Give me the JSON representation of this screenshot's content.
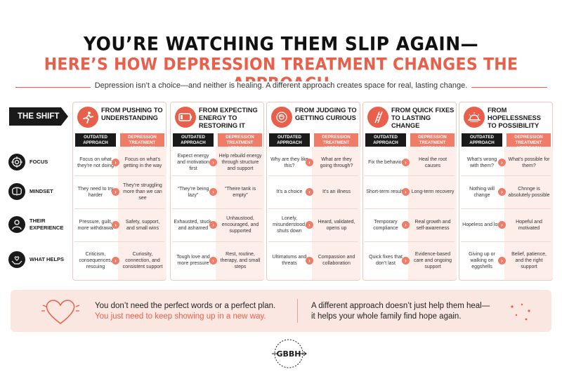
{
  "header": {
    "title_line1": "YOU’RE WATCHING THEM SLIP AGAIN—",
    "title_line2": "HERE’S HOW DEPRESSION TREATMENT CHANGES THE APPROACH",
    "subtitle": "Depression isn’t a choice—and neither is healing. A different approach creates space for real, lasting change."
  },
  "shift_label": "THE SHIFT",
  "tags": {
    "outdated": "OUTDATED APPROACH",
    "depression": "DEPRESSION TREATMENT APPROACH"
  },
  "rows": [
    {
      "label": "FOCUS",
      "icon": "target-icon"
    },
    {
      "label": "MINDSET",
      "icon": "brain-icon"
    },
    {
      "label": "THEIR EXPERIENCE",
      "icon": "person-icon"
    },
    {
      "label": "WHAT HELPS",
      "icon": "helping-hands-icon"
    }
  ],
  "columns": [
    {
      "title": "FROM PUSHING TO UNDERSTANDING",
      "icon": "running-person-icon",
      "cells": [
        [
          "Focus on what they’re not doing",
          "Focus on what’s getting in the way"
        ],
        [
          "They need to try harder",
          "They’re struggling more than we can see"
        ],
        [
          "Pressure, guilt, more withdrawal",
          "Safety, support, and small wins"
        ],
        [
          "Criticism, consequences, rescuing",
          "Curiosity, connection, and consistent support"
        ]
      ]
    },
    {
      "title": "FROM EXPECTING ENERGY TO RESTORING IT",
      "icon": "low-battery-icon",
      "cells": [
        [
          "Expect energy and motivation first",
          "Help rebuild energy through structure and support"
        ],
        [
          "“They’re being lazy”",
          "“Theire tank is empty”"
        ],
        [
          "Exhausted, stuck, and ashamed",
          "Unhaustood, encouraged, and supported"
        ],
        [
          "Tough love and more pressure",
          "Rest, routine, therapy, and small steps"
        ]
      ]
    },
    {
      "title": "FROM JUDGING TO GETTING CURIOUS",
      "icon": "tangled-brain-icon",
      "cells": [
        [
          "Why are they like this?",
          "What are they going through?"
        ],
        [
          "It’s a choice",
          "It’s an illness"
        ],
        [
          "Lonely, misunderstood, shuts down",
          "Heard, validated, opens up"
        ],
        [
          "Ultimatums and threats",
          "Compassion and collaboration"
        ]
      ]
    },
    {
      "title": "FROM QUICK FIXES TO LASTING CHANGE",
      "icon": "ladder-icon",
      "cells": [
        [
          "Fix the behavior",
          "Heal the root causes"
        ],
        [
          "Short-term results",
          "Long-term recovery"
        ],
        [
          "Temporary compliance",
          "Real growth and self-awareness"
        ],
        [
          "Quick fixes that don’t last",
          "Evidence-based care and ongoing support"
        ]
      ]
    },
    {
      "title": "FROM HOPELESSNESS TO POSSIBILITY",
      "icon": "sunrise-icon",
      "cells": [
        [
          "What’s wrong with them?",
          "What’s possible for them?"
        ],
        [
          "Nothing will change",
          "Chnnge is absolutely possible"
        ],
        [
          "Hopeless and lost",
          "Hopeful and motivated"
        ],
        [
          "Giving up or walking on eggshells",
          "Belief, patience, and the right support"
        ]
      ]
    }
  ],
  "bottom": {
    "left_line1": "You don’t need the perfect words or a perfect plan.",
    "left_line2": "You just need to keep showing up in a new way.",
    "right_line1": "A different approach doesn’t just help them heal—",
    "right_line2": "it helps your whole family find hope again."
  },
  "logo": {
    "text": "GBBH",
    "ring_text": "GREATER BOSTON BEHAVIORAL HEALTH"
  },
  "colors": {
    "accent": "#e8604c",
    "dark": "#1a1a1a",
    "pink_bg": "#fdeee9"
  }
}
